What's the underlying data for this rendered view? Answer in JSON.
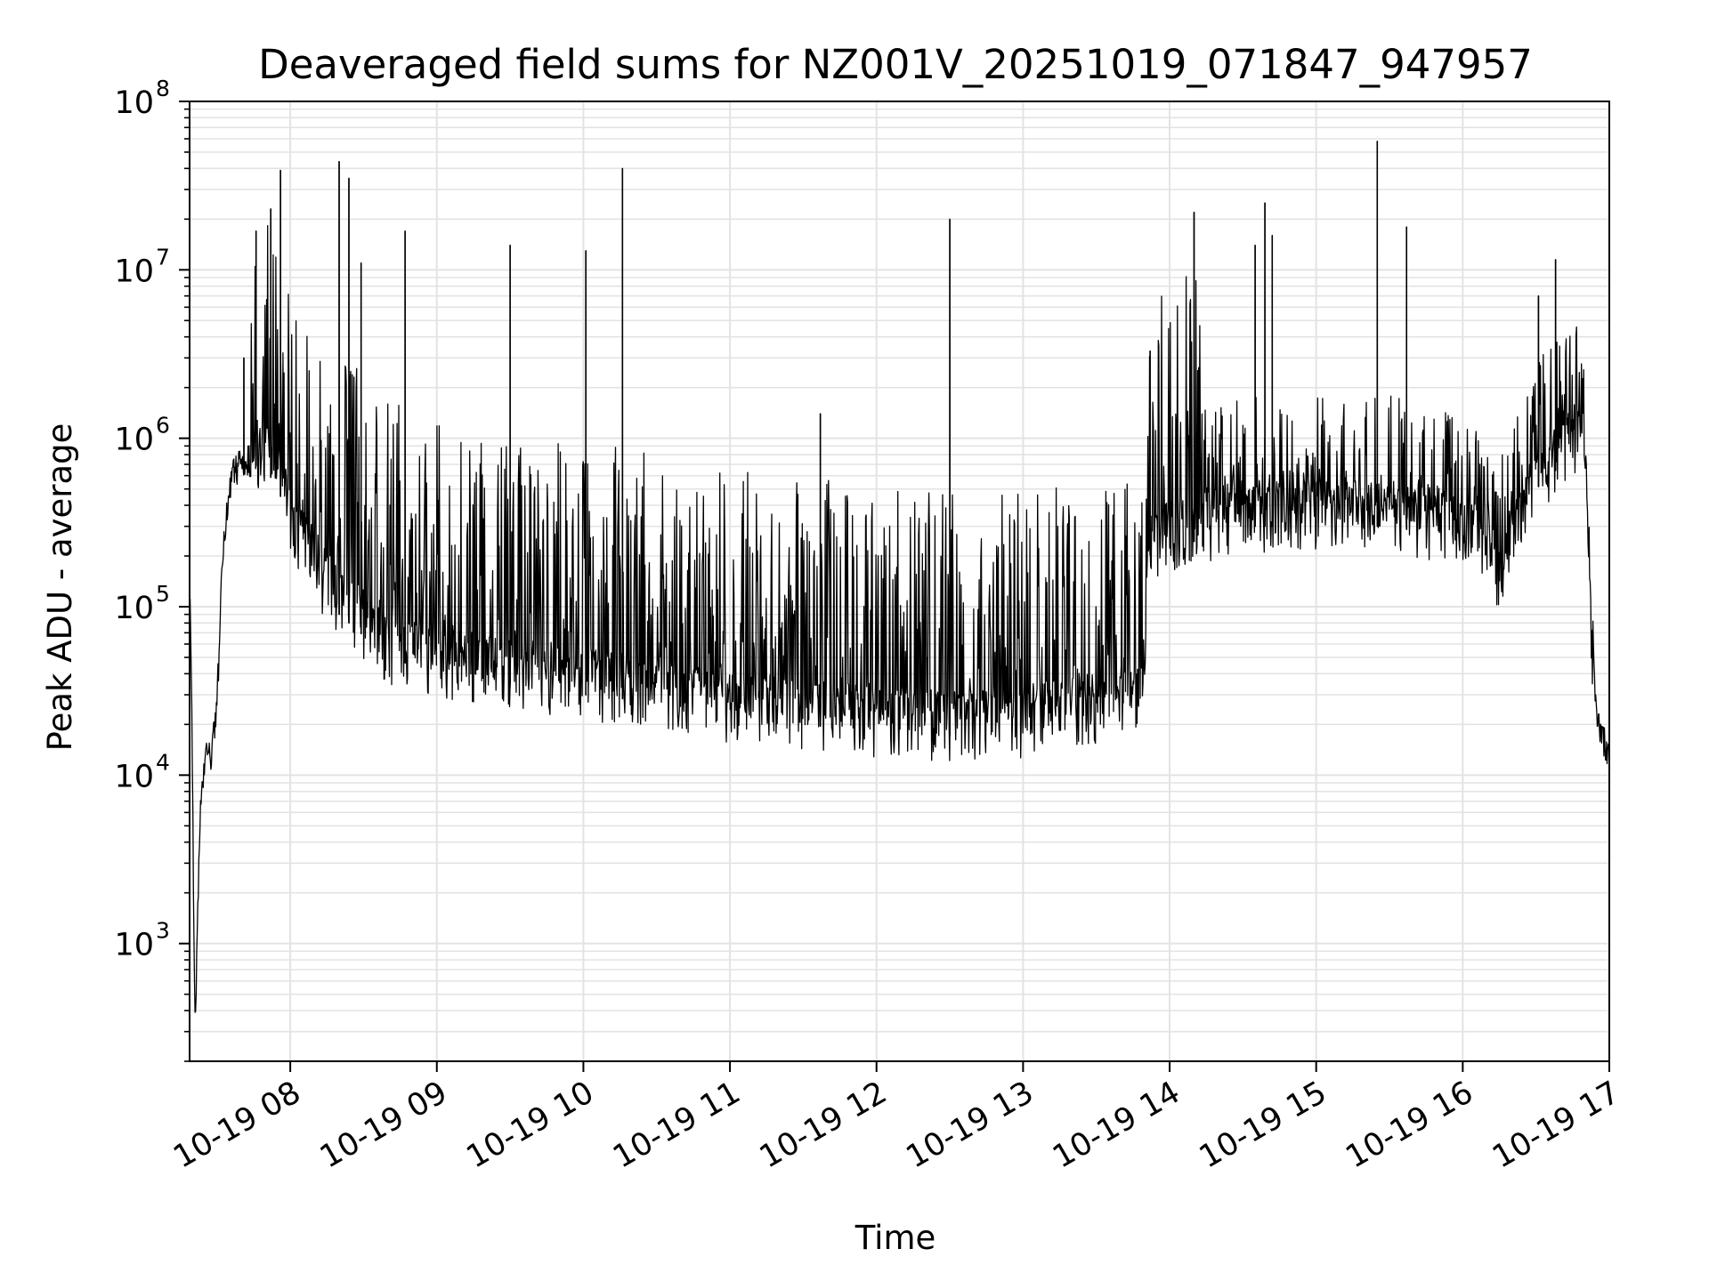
{
  "chart_data": {
    "type": "line",
    "title": "Deaveraged field sums for NZ001V_20251019_071847_947957",
    "xlabel": "Time",
    "ylabel": "Peak ADU - average",
    "x_scale": "time",
    "y_scale": "log",
    "xlim": [
      "2025-10-19 07:18:47",
      "2025-10-19 17:00:00"
    ],
    "ylim": [
      200,
      100000000
    ],
    "grid": true,
    "grid_minor": true,
    "legend": "none",
    "line_color": "#000000",
    "x_ticks": [
      {
        "value": "2025-10-19 08:00",
        "label": "10-19 08"
      },
      {
        "value": "2025-10-19 09:00",
        "label": "10-19 09"
      },
      {
        "value": "2025-10-19 10:00",
        "label": "10-19 10"
      },
      {
        "value": "2025-10-19 11:00",
        "label": "10-19 11"
      },
      {
        "value": "2025-10-19 12:00",
        "label": "10-19 12"
      },
      {
        "value": "2025-10-19 13:00",
        "label": "10-19 13"
      },
      {
        "value": "2025-10-19 14:00",
        "label": "10-19 14"
      },
      {
        "value": "2025-10-19 15:00",
        "label": "10-19 15"
      },
      {
        "value": "2025-10-19 16:00",
        "label": "10-19 16"
      },
      {
        "value": "2025-10-19 17:00",
        "label": "10-19 17"
      }
    ],
    "y_ticks": [
      {
        "value": 1000,
        "base": "10",
        "exp": "3"
      },
      {
        "value": 10000,
        "base": "10",
        "exp": "4"
      },
      {
        "value": 100000,
        "base": "10",
        "exp": "5"
      },
      {
        "value": 1000000,
        "base": "10",
        "exp": "6"
      },
      {
        "value": 10000000,
        "base": "10",
        "exp": "7"
      },
      {
        "value": 100000000,
        "base": "10",
        "exp": "8"
      }
    ],
    "x_tick_rotation": 30,
    "series": [
      {
        "baseline": {
          "x": [
            "2025-10-19 07:18:47",
            "2025-10-19 07:19:30",
            "2025-10-19 07:21:00",
            "2025-10-19 07:23:00",
            "2025-10-19 07:25:00",
            "2025-10-19 07:28:00",
            "2025-10-19 07:30:00",
            "2025-10-19 07:32:00",
            "2025-10-19 07:34:00",
            "2025-10-19 07:36:00",
            "2025-10-19 07:40:00",
            "2025-10-19 07:45:00",
            "2025-10-19 07:50:00",
            "2025-10-19 07:55:00",
            "2025-10-19 08:00:00",
            "2025-10-19 08:05:00",
            "2025-10-19 08:10:00",
            "2025-10-19 08:20:00",
            "2025-10-19 08:40:00",
            "2025-10-19 09:00:00",
            "2025-10-19 09:30:00",
            "2025-10-19 10:00:00",
            "2025-10-19 10:30:00",
            "2025-10-19 11:00:00",
            "2025-10-19 11:30:00",
            "2025-10-19 12:00:00",
            "2025-10-19 12:30:00",
            "2025-10-19 13:00:00",
            "2025-10-19 13:30:00",
            "2025-10-19 13:50:00",
            "2025-10-19 13:51:00",
            "2025-10-19 14:30:00",
            "2025-10-19 15:00:00",
            "2025-10-19 15:30:00",
            "2025-10-19 16:00:00",
            "2025-10-19 16:10:00",
            "2025-10-19 16:15:00",
            "2025-10-19 16:30:00",
            "2025-10-19 16:45:00",
            "2025-10-19 16:47:00",
            "2025-10-19 16:49:00",
            "2025-10-19 16:51:00",
            "2025-10-19 16:53:00",
            "2025-10-19 16:55:00",
            "2025-10-19 17:00:00"
          ],
          "y": [
            130000,
            40000,
            300,
            5000,
            12000,
            13000,
            25000,
            150000,
            350000,
            600000,
            700000,
            700000,
            650000,
            500000,
            300000,
            200000,
            150000,
            90000,
            50000,
            40000,
            35000,
            30000,
            27000,
            22000,
            20000,
            18000,
            17000,
            18000,
            22000,
            25000,
            200000,
            300000,
            300000,
            300000,
            250000,
            200000,
            120000,
            500000,
            800000,
            1000000,
            1000000,
            300000,
            50000,
            20000,
            12000
          ]
        },
        "spikes": {
          "x": [
            "2025-10-19 07:41:00",
            "2025-10-19 07:46:00",
            "2025-10-19 07:52:00",
            "2025-10-19 07:56:00",
            "2025-10-19 08:20:00",
            "2025-10-19 08:24:00",
            "2025-10-19 08:29:00",
            "2025-10-19 08:47:00",
            "2025-10-19 09:30:00",
            "2025-10-19 10:01:00",
            "2025-10-19 10:16:00",
            "2025-10-19 11:37:00",
            "2025-10-19 12:30:00",
            "2025-10-19 13:52:00",
            "2025-10-19 14:10:00",
            "2025-10-19 14:35:00",
            "2025-10-19 14:39:00",
            "2025-10-19 14:42:00",
            "2025-10-19 15:25:00",
            "2025-10-19 15:37:00",
            "2025-10-19 16:31:00",
            "2025-10-19 16:38:00"
          ],
          "y": [
            3000000,
            17000000,
            23000000,
            39000000,
            44000000,
            35000000,
            11000000,
            17000000,
            14000000,
            13000000,
            40000000,
            1400000,
            20000000,
            3300000,
            22000000,
            14000000,
            25000000,
            16000000,
            58000000,
            18000000,
            7000000,
            11500000
          ]
        }
      }
    ]
  }
}
